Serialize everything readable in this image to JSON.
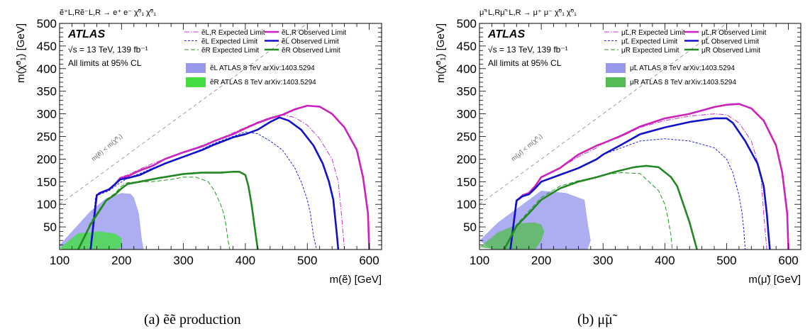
{
  "chart_data": [
    {
      "type": "line",
      "process": "ẽ⁺L,Rẽ⁻L,R → e⁺ e⁻ χ̃⁰₁ χ̃⁰₁",
      "experiment": "ATLAS",
      "energy_lumi": "√s = 13 TeV, 139 fb⁻¹",
      "cl_note": "All limits at 95% CL",
      "diag_label": "m(ẽ) < m(χ̃⁰₁)",
      "xlabel": "m(ẽ) [GeV]",
      "ylabel": "m(χ̃⁰₁) [GeV]",
      "xlim": [
        100,
        620
      ],
      "ylim": [
        0,
        500
      ],
      "xticks": [
        "100",
        "200",
        "300",
        "400",
        "500",
        "600"
      ],
      "yticks": [
        "50",
        "100",
        "150",
        "200",
        "250",
        "300",
        "350",
        "400",
        "450",
        "500"
      ],
      "caption": "(a) ẽẽ production",
      "series": [
        {
          "name": "ẽL,R Expected Limit",
          "color": "#cc33cc",
          "dash": "7,2,1.5,2",
          "width": 1,
          "x": [
            150,
            160,
            165,
            180,
            190,
            198,
            210,
            230,
            250,
            270,
            300,
            330,
            350,
            380,
            400,
            420,
            440,
            460,
            480,
            500,
            520,
            540,
            550,
            555,
            560
          ],
          "y": [
            0,
            120,
            125,
            135,
            145,
            160,
            165,
            178,
            190,
            200,
            215,
            230,
            240,
            258,
            270,
            282,
            292,
            298,
            292,
            275,
            245,
            200,
            150,
            80,
            0
          ]
        },
        {
          "name": "ẽL,R Observed Limit",
          "color": "#cc22bb",
          "dash": "",
          "width": 2.6,
          "x": [
            150,
            160,
            165,
            180,
            190,
            198,
            210,
            230,
            250,
            270,
            300,
            330,
            350,
            380,
            400,
            420,
            440,
            460,
            480,
            500,
            520,
            540,
            560,
            580,
            590,
            598,
            600
          ],
          "y": [
            0,
            120,
            125,
            133,
            145,
            158,
            162,
            175,
            185,
            200,
            215,
            228,
            240,
            255,
            268,
            280,
            290,
            298,
            310,
            318,
            316,
            300,
            270,
            220,
            160,
            80,
            0
          ]
        },
        {
          "name": "ẽL Expected Limit",
          "color": "#2222dd",
          "dash": "3,2",
          "width": 1,
          "x": [
            150,
            158,
            165,
            180,
            195,
            210,
            230,
            250,
            280,
            300,
            330,
            350,
            380,
            400,
            420,
            440,
            460,
            470,
            480,
            490,
            500,
            505,
            510,
            515
          ],
          "y": [
            0,
            115,
            122,
            130,
            145,
            158,
            168,
            180,
            195,
            205,
            222,
            235,
            250,
            260,
            256,
            240,
            220,
            200,
            180,
            150,
            110,
            80,
            30,
            0
          ]
        },
        {
          "name": "ẽL Observed Limit",
          "color": "#1111cc",
          "dash": "",
          "width": 2.6,
          "x": [
            150,
            160,
            165,
            180,
            190,
            198,
            210,
            230,
            250,
            270,
            300,
            330,
            350,
            380,
            400,
            420,
            440,
            455,
            470,
            490,
            510,
            525,
            535,
            542,
            545,
            548,
            550
          ],
          "y": [
            0,
            120,
            125,
            133,
            145,
            155,
            158,
            165,
            178,
            190,
            205,
            220,
            232,
            248,
            255,
            265,
            282,
            292,
            285,
            265,
            230,
            190,
            150,
            110,
            70,
            30,
            0
          ]
        },
        {
          "name": "ẽR Expected Limit",
          "color": "#229922",
          "dash": "6,3",
          "width": 1,
          "x": [
            130,
            150,
            175,
            190,
            200,
            210,
            230,
            250,
            280,
            300,
            320,
            340,
            350,
            360,
            365,
            368,
            370,
            372,
            375
          ],
          "y": [
            0,
            60,
            110,
            125,
            140,
            148,
            150,
            150,
            155,
            160,
            160,
            150,
            130,
            100,
            80,
            60,
            40,
            20,
            0
          ]
        },
        {
          "name": "ẽR Observed Limit",
          "color": "#228822",
          "dash": "",
          "width": 2.6,
          "x": [
            130,
            150,
            175,
            190,
            200,
            210,
            230,
            260,
            300,
            330,
            360,
            380,
            390,
            400,
            405,
            410,
            413,
            416,
            418,
            420
          ],
          "y": [
            0,
            55,
            108,
            122,
            135,
            145,
            150,
            158,
            167,
            170,
            170,
            172,
            172,
            165,
            140,
            100,
            70,
            40,
            20,
            0
          ]
        }
      ],
      "regions": [
        {
          "name": "ẽL ATLAS 8 TeV arXiv:1403.5294",
          "color": "#9999ee",
          "x": [
            100,
            150,
            175,
            200,
            215,
            220,
            228,
            233,
            236,
            220,
            190,
            160,
            130,
            105,
            100
          ],
          "y": [
            10,
            85,
            113,
            125,
            123,
            115,
            80,
            20,
            0,
            0,
            0,
            0,
            0,
            0,
            10
          ]
        },
        {
          "name": "ẽR ATLAS 8 TeV arXiv:1403.5294",
          "color": "#44dd44",
          "x": [
            100,
            130,
            165,
            190,
            200,
            200,
            190,
            165,
            130,
            105,
            100
          ],
          "y": [
            3,
            36,
            40,
            35,
            25,
            5,
            0,
            0,
            0,
            0,
            3
          ]
        }
      ]
    },
    {
      "type": "line",
      "process": "μ̃⁺L,Rμ̃⁻L,R → μ⁺ μ⁻ χ̃⁰₁ χ̃⁰₁",
      "experiment": "ATLAS",
      "energy_lumi": "√s = 13 TeV, 139 fb⁻¹",
      "cl_note": "All limits at 95% CL",
      "diag_label": "m(μ̃) < m(χ̃⁰₁)",
      "xlabel": "m(μ̃) [GeV]",
      "ylabel": "m(χ̃⁰₁) [GeV]",
      "xlim": [
        100,
        620
      ],
      "ylim": [
        0,
        500
      ],
      "xticks": [
        "100",
        "200",
        "300",
        "400",
        "500",
        "600"
      ],
      "yticks": [
        "50",
        "100",
        "150",
        "200",
        "250",
        "300",
        "350",
        "400",
        "450",
        "500"
      ],
      "caption": "(b) μ̃μ̃",
      "series": [
        {
          "name": "μ̃L,R Expected Limit",
          "color": "#cc33cc",
          "dash": "7,2,1.5,2",
          "width": 1,
          "x": [
            150,
            160,
            170,
            180,
            190,
            200,
            230,
            260,
            290,
            300,
            330,
            360,
            400,
            440,
            480,
            500,
            520,
            540,
            555,
            560,
            565
          ],
          "y": [
            0,
            105,
            120,
            125,
            140,
            160,
            180,
            205,
            225,
            235,
            250,
            270,
            285,
            295,
            300,
            298,
            280,
            240,
            170,
            80,
            0
          ]
        },
        {
          "name": "μ̃L,R Observed Limit",
          "color": "#cc22bb",
          "dash": "",
          "width": 2.6,
          "x": [
            150,
            160,
            170,
            180,
            190,
            200,
            230,
            260,
            290,
            300,
            330,
            360,
            400,
            440,
            480,
            500,
            520,
            540,
            560,
            580,
            590,
            598,
            600
          ],
          "y": [
            0,
            108,
            120,
            125,
            140,
            160,
            180,
            210,
            230,
            235,
            252,
            272,
            290,
            300,
            315,
            320,
            322,
            312,
            285,
            230,
            170,
            80,
            0
          ]
        },
        {
          "name": "μ̃L Expected Limit",
          "color": "#2222dd",
          "dash": "3,2",
          "width": 1,
          "x": [
            150,
            160,
            170,
            180,
            190,
            200,
            230,
            260,
            290,
            300,
            330,
            360,
            400,
            440,
            480,
            500,
            510,
            520,
            525,
            528,
            530
          ],
          "y": [
            0,
            110,
            118,
            122,
            135,
            150,
            165,
            180,
            200,
            210,
            225,
            240,
            245,
            240,
            225,
            200,
            170,
            120,
            80,
            40,
            0
          ]
        },
        {
          "name": "μ̃L Observed Limit",
          "color": "#1111cc",
          "dash": "",
          "width": 2.6,
          "x": [
            150,
            160,
            170,
            180,
            190,
            200,
            230,
            260,
            290,
            300,
            330,
            360,
            400,
            440,
            480,
            500,
            510,
            530,
            550,
            560,
            565,
            568,
            570
          ],
          "y": [
            0,
            108,
            118,
            122,
            135,
            150,
            165,
            180,
            200,
            210,
            232,
            255,
            270,
            282,
            290,
            290,
            280,
            240,
            190,
            140,
            80,
            30,
            0
          ]
        },
        {
          "name": "μ̃R Expected Limit",
          "color": "#229922",
          "dash": "6,3",
          "width": 1,
          "x": [
            140,
            160,
            180,
            200,
            230,
            260,
            290,
            300,
            330,
            360,
            390,
            400,
            405,
            410,
            412
          ],
          "y": [
            0,
            55,
            85,
            115,
            140,
            152,
            160,
            165,
            170,
            168,
            130,
            100,
            70,
            30,
            0
          ]
        },
        {
          "name": "μ̃R Observed Limit",
          "color": "#228822",
          "dash": "",
          "width": 2.6,
          "x": [
            140,
            160,
            180,
            200,
            230,
            260,
            290,
            320,
            350,
            370,
            390,
            410,
            420,
            430,
            440,
            448,
            452
          ],
          "y": [
            0,
            52,
            80,
            110,
            135,
            150,
            160,
            172,
            182,
            185,
            182,
            160,
            140,
            100,
            60,
            20,
            0
          ]
        }
      ],
      "regions": [
        {
          "name": "μ̃L ATLAS 8 TeV arXiv:1403.5294",
          "color": "#9999ee",
          "x": [
            100,
            130,
            170,
            200,
            240,
            270,
            275,
            280,
            275,
            240,
            200,
            160,
            120,
            100
          ],
          "y": [
            20,
            60,
            100,
            130,
            125,
            110,
            60,
            20,
            0,
            0,
            0,
            0,
            0,
            20
          ]
        },
        {
          "name": "μ̃R ATLAS 8 TeV arXiv:1403.5294",
          "color": "#55bb55",
          "x": [
            100,
            130,
            165,
            190,
            200,
            205,
            200,
            190,
            165,
            130,
            100
          ],
          "y": [
            5,
            38,
            58,
            60,
            55,
            40,
            20,
            0,
            0,
            0,
            5
          ]
        }
      ]
    }
  ]
}
